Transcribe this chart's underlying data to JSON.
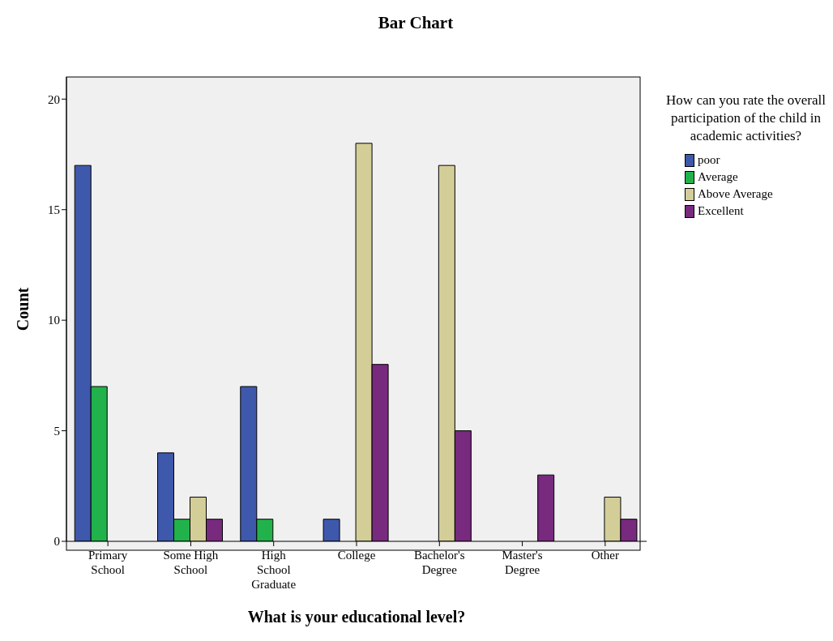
{
  "chart_data": {
    "type": "bar",
    "title": "Bar Chart",
    "xlabel": "What is your educational level?",
    "ylabel": "Count",
    "legend_title": "How can you rate the overall participation of the child in academic activities?",
    "categories": [
      "Primary School",
      "Some High School",
      "High School Graduate",
      "College",
      "Bachelor's Degree",
      "Master's Degree",
      "Other"
    ],
    "series": [
      {
        "name": "poor",
        "color": "#3e58ac",
        "values": [
          17,
          4,
          7,
          1,
          null,
          null,
          null
        ]
      },
      {
        "name": "Average",
        "color": "#21b24b",
        "values": [
          7,
          1,
          1,
          null,
          null,
          null,
          null
        ]
      },
      {
        "name": "Above Average",
        "color": "#d3ce98",
        "values": [
          null,
          2,
          null,
          18,
          17,
          null,
          2
        ]
      },
      {
        "name": "Excellent",
        "color": "#782a7f",
        "values": [
          null,
          1,
          null,
          8,
          5,
          3,
          1
        ]
      }
    ],
    "ylim": [
      0,
      21
    ],
    "yticks": [
      0,
      5,
      10,
      15,
      20
    ],
    "grid": false,
    "legend": "right"
  }
}
